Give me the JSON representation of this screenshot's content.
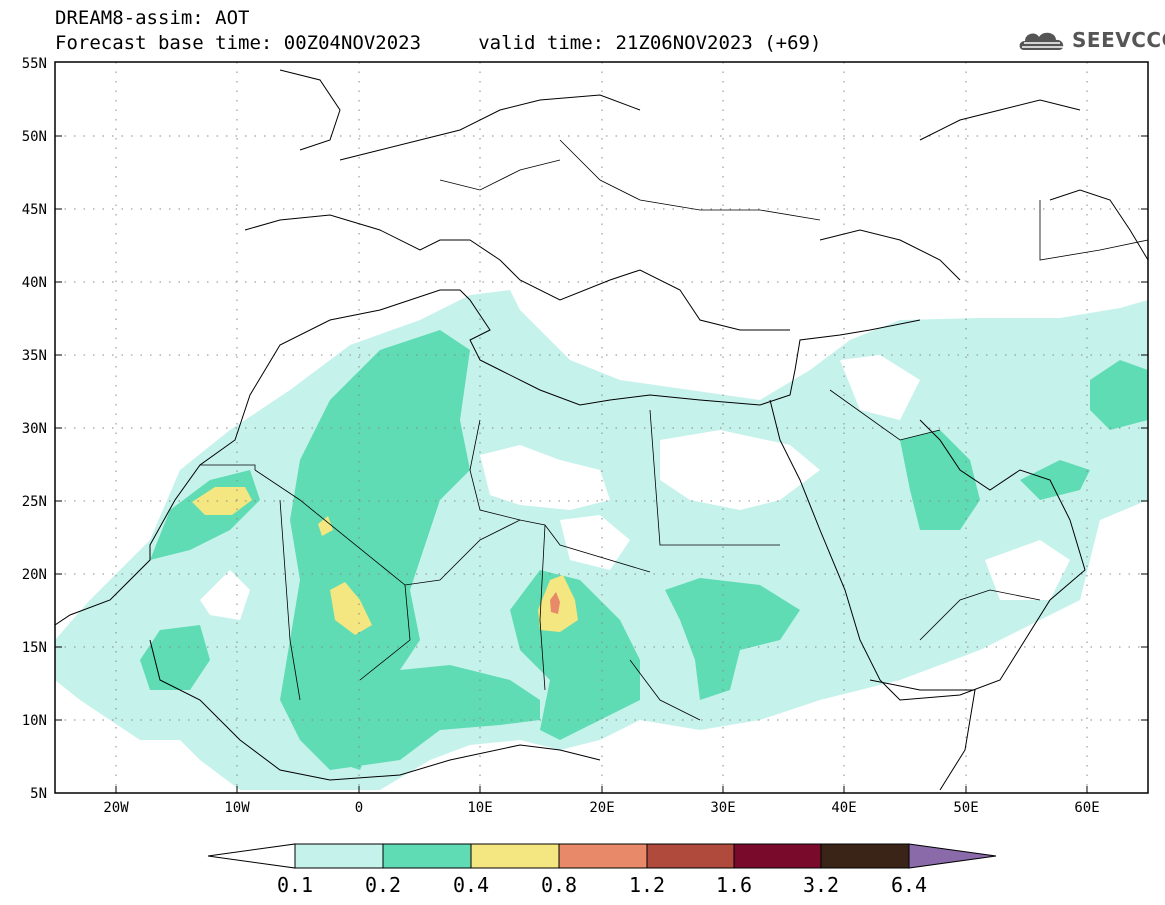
{
  "header": {
    "line1": "DREAM8-assim: AOT",
    "line2": "Forecast base time: 00Z04NOV2023     valid time: 21Z06NOV2023 (+69)"
  },
  "logo": {
    "text": "SEEVCCC",
    "icon": "cloud-icon"
  },
  "map": {
    "lat_labels": [
      "55N",
      "50N",
      "45N",
      "40N",
      "35N",
      "30N",
      "25N",
      "20N",
      "15N",
      "10N",
      "5N"
    ],
    "lon_labels": [
      "20W",
      "10W",
      "0",
      "10E",
      "20E",
      "30E",
      "40E",
      "50E",
      "60E"
    ],
    "lat_range": [
      5,
      55
    ],
    "lon_range": [
      -25,
      65
    ],
    "grid": "dotted"
  },
  "colorbar": {
    "levels": [
      "0.1",
      "0.2",
      "0.4",
      "0.8",
      "1.2",
      "1.6",
      "3.2",
      "6.4"
    ],
    "colors": [
      "#ffffff",
      "#c6f2ec",
      "#5fdcb3",
      "#f4e680",
      "#e8896a",
      "#b04a3c",
      "#7a0a2c",
      "#3a2417",
      "#8a6aa8"
    ]
  },
  "colors": {
    "aot_low": "#c6f2ec",
    "aot_mid": "#5fdcb3",
    "aot_high": "#f4e680",
    "aot_very_high": "#e8896a"
  }
}
